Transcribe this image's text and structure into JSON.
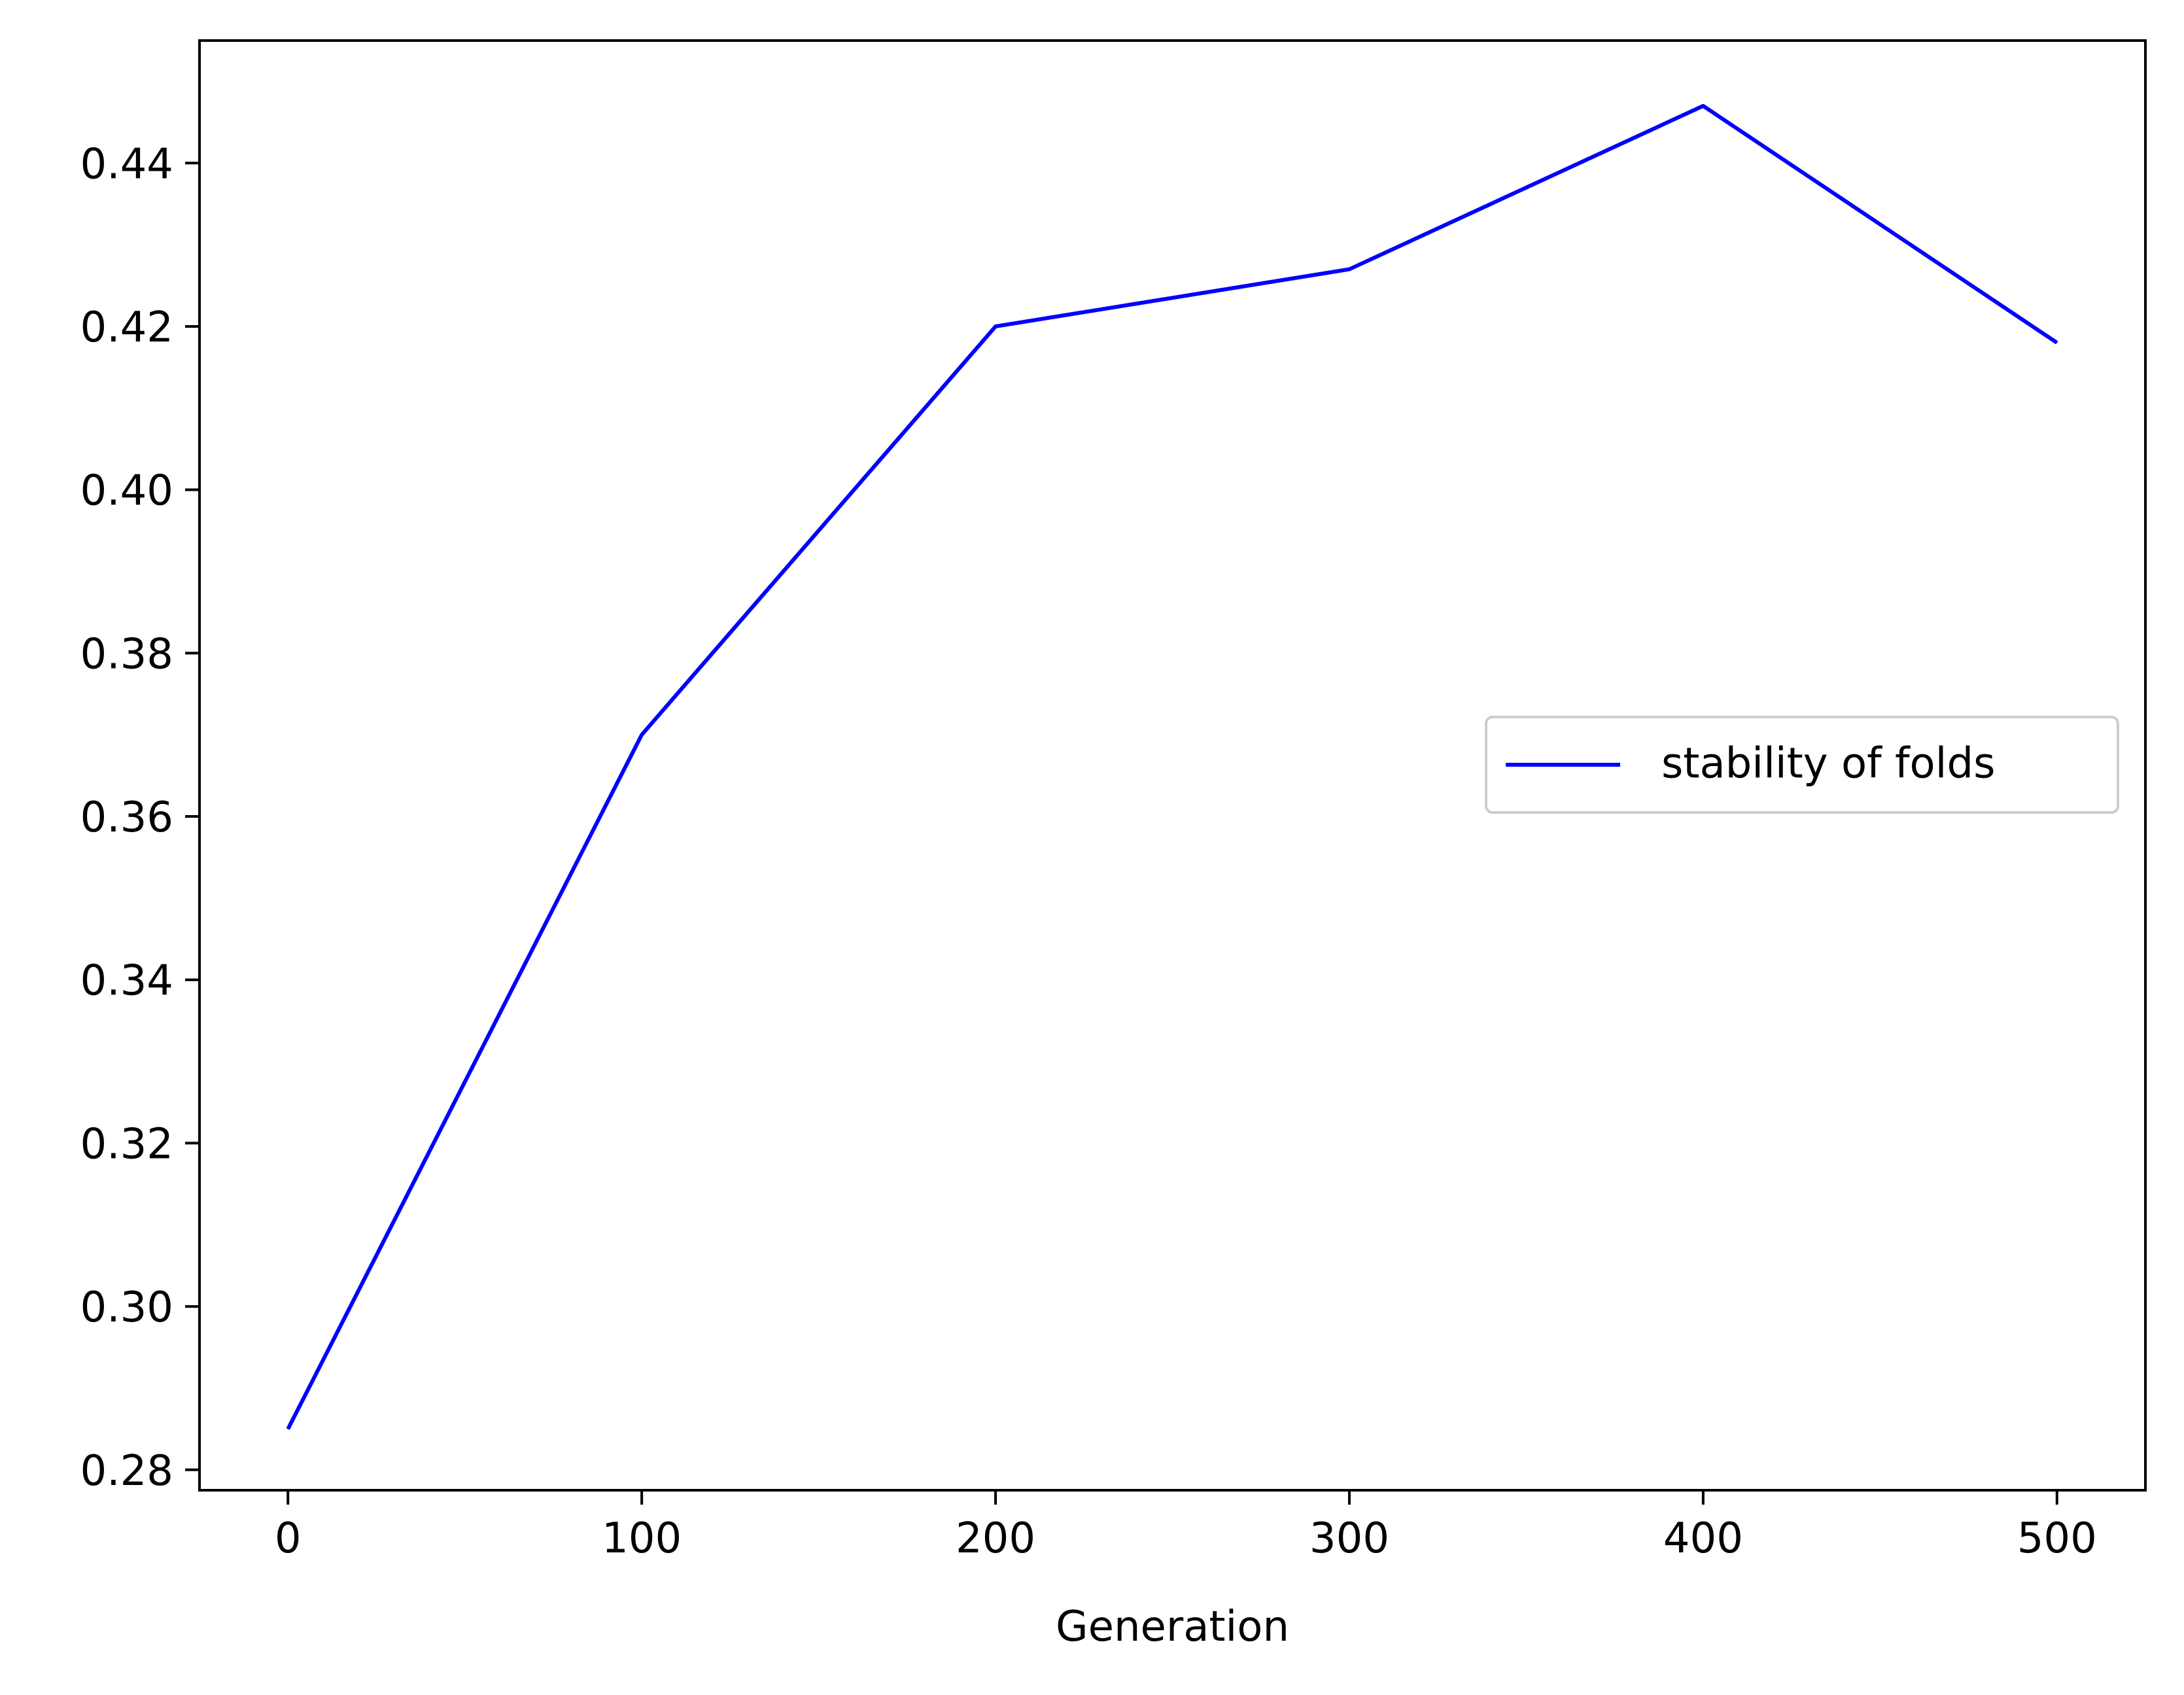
{
  "chart_data": {
    "type": "line",
    "title": "",
    "xlabel": "Generation",
    "ylabel": "",
    "xlim": [
      -25,
      525
    ],
    "ylim": [
      0.2775,
      0.455
    ],
    "x_ticks": [
      0,
      100,
      200,
      300,
      400,
      500
    ],
    "x_tick_labels": [
      "0",
      "100",
      "200",
      "300",
      "400",
      "500"
    ],
    "y_ticks": [
      0.28,
      0.3,
      0.32,
      0.34,
      0.36,
      0.38,
      0.4,
      0.42,
      0.44
    ],
    "y_tick_labels": [
      "0.28",
      "0.30",
      "0.32",
      "0.34",
      "0.36",
      "0.38",
      "0.40",
      "0.42",
      "0.44"
    ],
    "grid": false,
    "legend_position": "center-right",
    "series": [
      {
        "name": "stability of folds",
        "color": "#0000ff",
        "x": [
          0,
          100,
          200,
          300,
          400,
          500
        ],
        "y": [
          0.285,
          0.37,
          0.42,
          0.427,
          0.447,
          0.418
        ]
      }
    ]
  }
}
